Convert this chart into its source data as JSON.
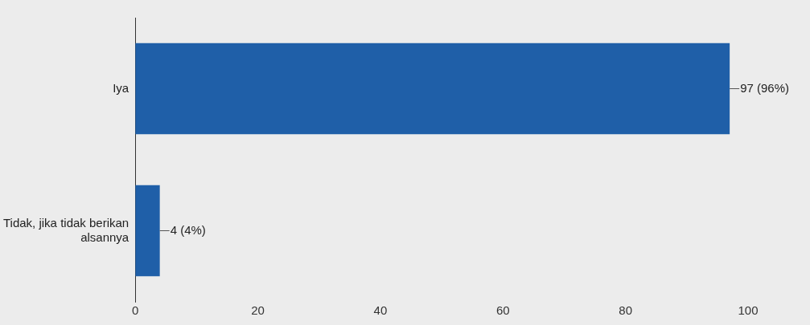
{
  "chart_data": {
    "type": "bar",
    "orientation": "horizontal",
    "categories": [
      "Iya",
      "Tidak, jika tidak berikan alsannya"
    ],
    "values": [
      97,
      4
    ],
    "color": "#1f5fa8",
    "value_labels": [
      "97 (96%)",
      "4 (4%)"
    ],
    "xlim": [
      0,
      100
    ],
    "xticks": [
      0,
      20,
      40,
      60,
      80,
      100
    ],
    "grid": false,
    "legend": false
  }
}
